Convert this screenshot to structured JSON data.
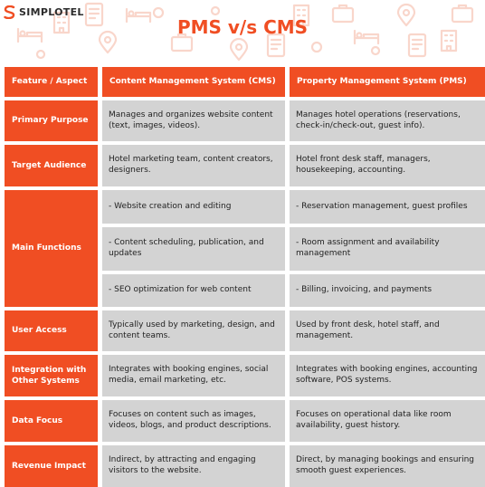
{
  "brand": {
    "name": "SIMPLOTEL",
    "accent": "#f04e23"
  },
  "title": "PMS v/s CMS",
  "header": {
    "col1": "Feature / Aspect",
    "col2": "Content Management System (CMS)",
    "col3": "Property Management System (PMS)"
  },
  "rows": {
    "purpose": {
      "label": "Primary Purpose",
      "cms": "Manages and organizes website content (text, images, videos).",
      "pms": "Manages hotel operations (reservations, check-in/check-out, guest info)."
    },
    "audience": {
      "label": "Target Audience",
      "cms": "Hotel marketing team, content creators, designers.",
      "pms": "Hotel front desk staff, managers, housekeeping, accounting."
    },
    "functions": {
      "label": "Main Functions",
      "cms": [
        "- Website creation and editing",
        "- Content scheduling, publication, and updates",
        "- SEO optimization for web content"
      ],
      "pms": [
        "- Reservation management, guest profiles",
        "- Room assignment and availability management",
        "- Billing, invoicing, and payments"
      ]
    },
    "access": {
      "label": "User Access",
      "cms": "Typically used by marketing, design, and content teams.",
      "pms": "Used by front desk, hotel staff, and management."
    },
    "integration": {
      "label": "Integration with Other Systems",
      "cms": "Integrates with booking engines, social media, email marketing, etc.",
      "pms": "Integrates with booking engines, accounting software, POS systems."
    },
    "data": {
      "label": "Data Focus",
      "cms": "Focuses on content such as images, videos, blogs, and product descriptions.",
      "pms": "Focuses on operational data like room availability, guest history."
    },
    "revenue": {
      "label": "Revenue Impact",
      "cms": "Indirect, by attracting and engaging visitors to the website.",
      "pms": "Direct, by managing bookings and ensuring smooth guest experiences."
    }
  }
}
